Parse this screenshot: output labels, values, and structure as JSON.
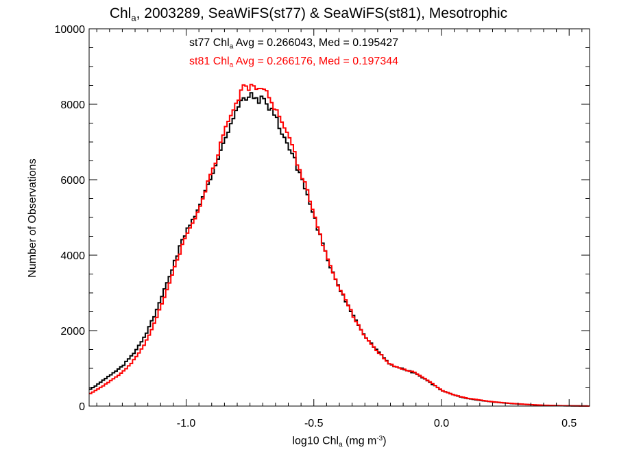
{
  "title": {
    "main": "Chl",
    "sub": "a",
    "rest": ", 2003289, SeaWiFS(st77) & SeaWiFS(st81), Mesotrophic"
  },
  "xlabel": {
    "pre": "log10 Chl",
    "sub": "a",
    "mid": " (mg m",
    "sup": "-3",
    "post": ")"
  },
  "ylabel": "Number of Observations",
  "annotations": [
    {
      "pre": "st77 Chl",
      "sub": "a",
      "post": " Avg = 0.266043, Med = 0.195427",
      "color": "#000000"
    },
    {
      "pre": "st81 Chl",
      "sub": "a",
      "post": " Avg = 0.266176, Med = 0.197344",
      "color": "#ff0000"
    }
  ],
  "chart_data": {
    "type": "line",
    "step": true,
    "xlim": [
      -1.38,
      0.58
    ],
    "ylim": [
      0,
      10000
    ],
    "xticks": [
      -1.0,
      -0.5,
      0.0,
      0.5
    ],
    "xtick_labels": [
      "-1.0",
      "-0.5",
      "0.0",
      "0.5"
    ],
    "yticks": [
      0,
      2000,
      4000,
      6000,
      8000,
      10000
    ],
    "ytick_labels": [
      "0",
      "2000",
      "4000",
      "6000",
      "8000",
      "10000"
    ],
    "grid": false,
    "series": [
      {
        "name": "st77",
        "color": "#000000",
        "x": [
          -1.38,
          -1.35,
          -1.3,
          -1.25,
          -1.2,
          -1.15,
          -1.1,
          -1.05,
          -1.0,
          -0.95,
          -0.9,
          -0.85,
          -0.8,
          -0.775,
          -0.75,
          -0.72,
          -0.7,
          -0.68,
          -0.66,
          -0.64,
          -0.62,
          -0.6,
          -0.55,
          -0.5,
          -0.45,
          -0.4,
          -0.35,
          -0.3,
          -0.25,
          -0.2,
          -0.15,
          -0.1,
          -0.05,
          0.0,
          0.05,
          0.1,
          0.15,
          0.2,
          0.25,
          0.3,
          0.35,
          0.4,
          0.45,
          0.5,
          0.55,
          0.58
        ],
        "y": [
          430,
          560,
          800,
          1050,
          1450,
          2000,
          2800,
          3750,
          4650,
          5250,
          6100,
          7100,
          7850,
          8150,
          8200,
          8150,
          8100,
          8000,
          7800,
          7500,
          7200,
          6900,
          6100,
          5050,
          3950,
          3150,
          2450,
          1850,
          1450,
          1100,
          980,
          860,
          650,
          420,
          290,
          200,
          150,
          110,
          80,
          55,
          35,
          20,
          12,
          6,
          3,
          0
        ]
      },
      {
        "name": "st81",
        "color": "#ff0000",
        "x": [
          -1.38,
          -1.35,
          -1.3,
          -1.25,
          -1.2,
          -1.15,
          -1.1,
          -1.05,
          -1.0,
          -0.95,
          -0.9,
          -0.85,
          -0.8,
          -0.775,
          -0.75,
          -0.72,
          -0.7,
          -0.68,
          -0.66,
          -0.64,
          -0.62,
          -0.6,
          -0.55,
          -0.5,
          -0.45,
          -0.4,
          -0.35,
          -0.3,
          -0.25,
          -0.2,
          -0.15,
          -0.1,
          -0.05,
          0.0,
          0.05,
          0.1,
          0.15,
          0.2,
          0.25,
          0.3,
          0.35,
          0.4,
          0.45,
          0.5,
          0.55,
          0.58
        ],
        "y": [
          320,
          430,
          650,
          900,
          1250,
          1800,
          2600,
          3600,
          4550,
          5250,
          6200,
          7300,
          8150,
          8450,
          8450,
          8400,
          8350,
          8250,
          8050,
          7750,
          7450,
          7100,
          6200,
          5100,
          3950,
          3150,
          2450,
          1850,
          1450,
          1100,
          980,
          880,
          670,
          420,
          290,
          210,
          160,
          115,
          85,
          58,
          38,
          22,
          13,
          7,
          3,
          0
        ]
      }
    ]
  }
}
